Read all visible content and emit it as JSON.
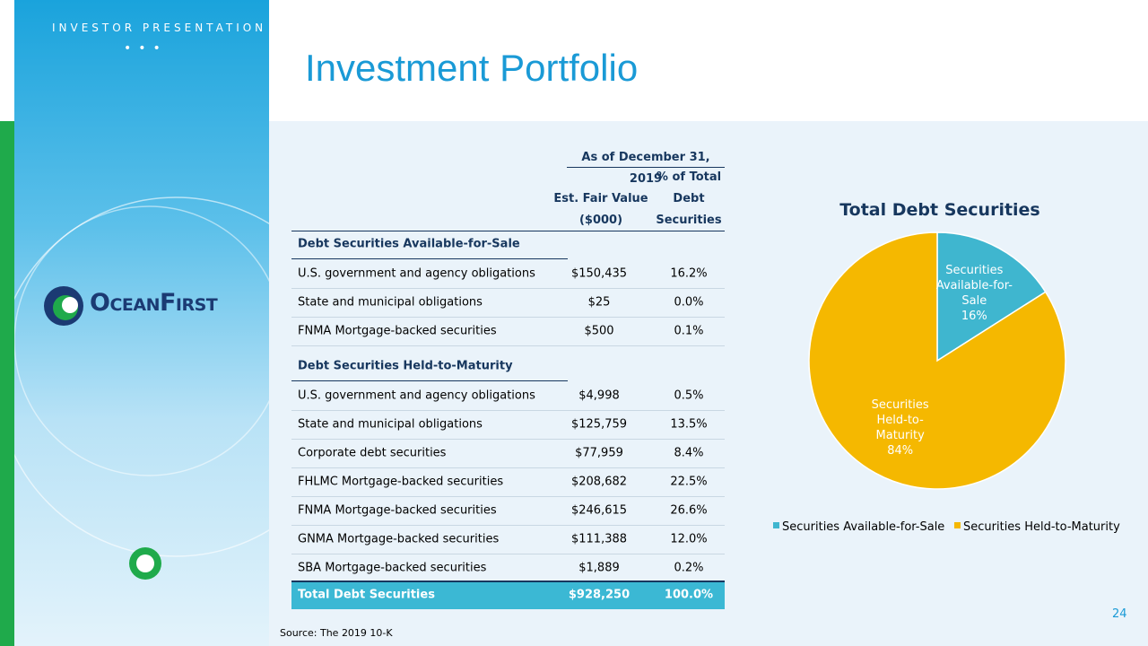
{
  "header": {
    "kicker": "INVESTOR PRESENTATION",
    "title": "Investment Portfolio",
    "logo": "OceanFirst"
  },
  "table": {
    "date_header": "As of December 31, 2019",
    "columns": [
      "Est. Fair Value ($000)",
      "% of Total Debt Securities"
    ],
    "sections": [
      {
        "title": "Debt Securities Available-for-Sale",
        "rows": [
          [
            "U.S. government and agency obligations",
            "$150,435",
            "16.2%"
          ],
          [
            "State and municipal obligations",
            "$25",
            "0.0%"
          ],
          [
            "FNMA Mortgage-backed securities",
            "$500",
            "0.1%"
          ]
        ]
      },
      {
        "title": "Debt Securities Held-to-Maturity",
        "rows": [
          [
            "U.S. government and agency obligations",
            "$4,998",
            "0.5%"
          ],
          [
            "State and municipal obligations",
            "$125,759",
            "13.5%"
          ],
          [
            "Corporate debt securities",
            "$77,959",
            "8.4%"
          ],
          [
            "FHLMC Mortgage-backed securities",
            "$208,682",
            "22.5%"
          ],
          [
            "FNMA Mortgage-backed securities",
            "$246,615",
            "26.6%"
          ],
          [
            "GNMA Mortgage-backed securities",
            "$111,388",
            "12.0%"
          ],
          [
            "SBA Mortgage-backed securities",
            "$1,889",
            "0.2%"
          ]
        ]
      }
    ],
    "total": [
      "Total Debt Securities",
      "$928,250",
      "100.0%"
    ]
  },
  "chart_data": {
    "type": "pie",
    "title": "Total Debt Securities",
    "categories": [
      "Securities Available-for-Sale",
      "Securities Held-to-Maturity"
    ],
    "values": [
      16,
      84
    ],
    "value_labels": [
      "16%",
      "84%"
    ],
    "colors": [
      "#3fb6cf",
      "#f5b800"
    ],
    "legend": "bottom"
  },
  "footer": {
    "source": "Source: The 2019 10-K",
    "page": "24"
  }
}
